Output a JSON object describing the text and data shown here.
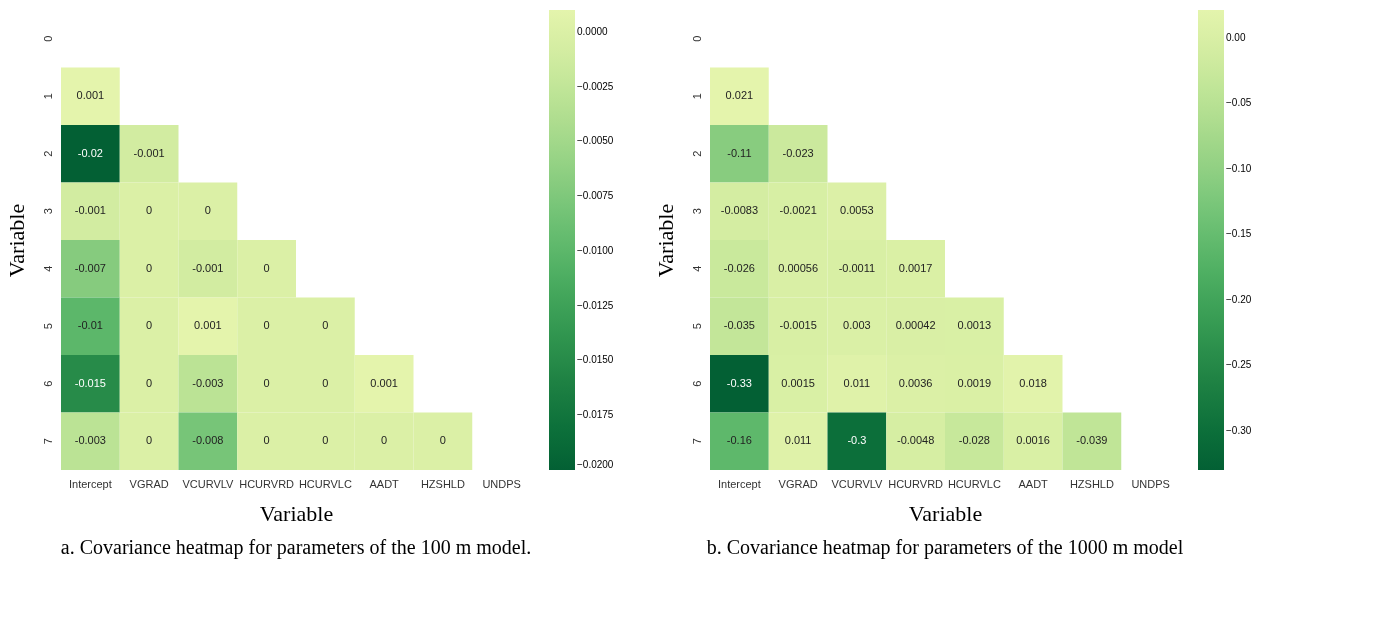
{
  "chart_data": [
    {
      "type": "heatmap",
      "title": "a. Covariance heatmap for parameters of the 100 m model.",
      "xlabel": "Variable",
      "ylabel": "Variable",
      "categories": [
        "Intercept",
        "VGRAD",
        "VCURVLV",
        "HCURVRD",
        "HCURVLC",
        "AADT",
        "HZSHLD",
        "UNDPS"
      ],
      "y_categories": [
        "0",
        "1",
        "2",
        "3",
        "4",
        "5",
        "6",
        "7"
      ],
      "cells": [
        [
          null,
          null,
          null,
          null,
          null,
          null,
          null,
          null
        ],
        [
          0.001,
          null,
          null,
          null,
          null,
          null,
          null,
          null
        ],
        [
          -0.02,
          -0.001,
          null,
          null,
          null,
          null,
          null,
          null
        ],
        [
          -0.001,
          0,
          0,
          null,
          null,
          null,
          null,
          null
        ],
        [
          -0.007,
          0,
          -0.001,
          0,
          null,
          null,
          null,
          null
        ],
        [
          -0.01,
          0,
          0.001,
          0,
          0,
          null,
          null,
          null
        ],
        [
          -0.015,
          0,
          -0.003,
          0,
          0,
          0.001,
          null,
          null
        ],
        [
          -0.003,
          0,
          -0.008,
          0,
          0,
          0,
          0,
          null
        ]
      ],
      "clim": [
        -0.02,
        0.001
      ],
      "cticks": [
        {
          "value": 0,
          "label": "0.0000"
        },
        {
          "value": -0.0025,
          "label": "−0.0025"
        },
        {
          "value": -0.005,
          "label": "−0.0050"
        },
        {
          "value": -0.0075,
          "label": "−0.0075"
        },
        {
          "value": -0.01,
          "label": "−0.0100"
        },
        {
          "value": -0.0125,
          "label": "−0.0125"
        },
        {
          "value": -0.015,
          "label": "−0.0150"
        },
        {
          "value": -0.0175,
          "label": "−0.0175"
        },
        {
          "value": -0.02,
          "label": "−0.0200"
        }
      ],
      "data_labels": true
    },
    {
      "type": "heatmap",
      "title": "b. Covariance heatmap for parameters of the 1000 m model",
      "xlabel": "Variable",
      "ylabel": "Variable",
      "categories": [
        "Intercept",
        "VGRAD",
        "VCURVLV",
        "HCURVRD",
        "HCURVLC",
        "AADT",
        "HZSHLD",
        "UNDPS"
      ],
      "y_categories": [
        "0",
        "1",
        "2",
        "3",
        "4",
        "5",
        "6",
        "7"
      ],
      "cells": [
        [
          null,
          null,
          null,
          null,
          null,
          null,
          null,
          null
        ],
        [
          0.021,
          null,
          null,
          null,
          null,
          null,
          null,
          null
        ],
        [
          -0.11,
          -0.023,
          null,
          null,
          null,
          null,
          null,
          null
        ],
        [
          -0.0083,
          -0.0021,
          0.0053,
          null,
          null,
          null,
          null,
          null
        ],
        [
          -0.026,
          0.00056,
          -0.0011,
          0.0017,
          null,
          null,
          null,
          null
        ],
        [
          -0.035,
          -0.0015,
          0.003,
          0.00042,
          0.0013,
          null,
          null,
          null
        ],
        [
          -0.33,
          0.0015,
          0.011,
          0.0036,
          0.0019,
          0.018,
          null,
          null
        ],
        [
          -0.16,
          0.011,
          -0.3,
          -0.0048,
          -0.028,
          0.0016,
          -0.039,
          null
        ]
      ],
      "clim": [
        -0.33,
        0.021
      ],
      "cticks": [
        {
          "value": 0,
          "label": "0.00"
        },
        {
          "value": -0.05,
          "label": "−0.05"
        },
        {
          "value": -0.1,
          "label": "−0.10"
        },
        {
          "value": -0.15,
          "label": "−0.15"
        },
        {
          "value": -0.2,
          "label": "−0.20"
        },
        {
          "value": -0.25,
          "label": "−0.25"
        },
        {
          "value": -0.3,
          "label": "−0.30"
        }
      ],
      "data_labels": true
    }
  ]
}
